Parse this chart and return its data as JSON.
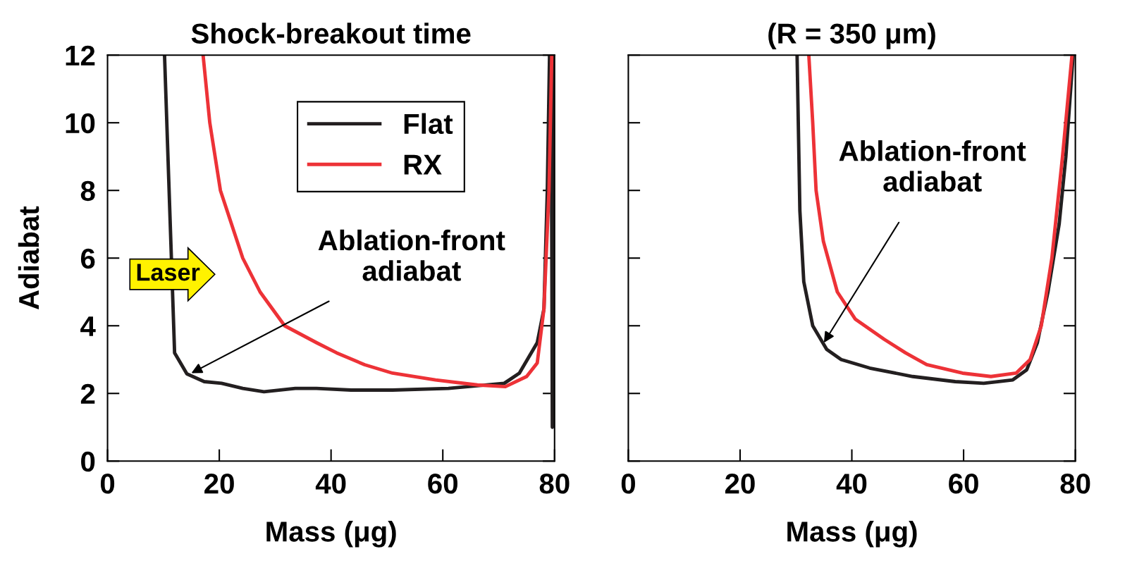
{
  "chart_data": [
    {
      "type": "line",
      "title": "Shock-breakout time",
      "xlabel": "Mass (μg)",
      "ylabel": "Adiabat",
      "xlim": [
        0,
        80
      ],
      "ylim": [
        0,
        12
      ],
      "xticks": [
        0,
        20,
        40,
        60,
        80
      ],
      "yticks": [
        0,
        2,
        4,
        6,
        8,
        10,
        12
      ],
      "grid": false,
      "legend": "top right",
      "line_style": "solid",
      "series": [
        {
          "name": "Flat",
          "color": "#231f20",
          "x": [
            10.2,
            12,
            14.2,
            17.3,
            20.4,
            24.2,
            28,
            33.6,
            37.4,
            43.6,
            51,
            61,
            71,
            73.7,
            76.9,
            78.1,
            78.7,
            79.1,
            79.4,
            79.6,
            79.8,
            80
          ],
          "values": [
            12,
            3.2,
            2.58,
            2.35,
            2.3,
            2.15,
            2.05,
            2.15,
            2.15,
            2.1,
            2.1,
            2.15,
            2.3,
            2.6,
            3.5,
            4.5,
            8,
            12,
            12,
            1.0,
            1.2,
            12
          ]
        },
        {
          "name": "RX",
          "color": "#ed3237",
          "x": [
            17.1,
            18.3,
            20.2,
            24.2,
            27.3,
            31.7,
            37.4,
            41,
            46,
            51,
            58.7,
            66.2,
            71.2,
            75,
            76.9,
            78.1,
            79,
            79.5
          ],
          "values": [
            12,
            10,
            8,
            6,
            5,
            4,
            3.5,
            3.2,
            2.85,
            2.6,
            2.4,
            2.25,
            2.2,
            2.5,
            2.9,
            4.5,
            8,
            12
          ]
        }
      ],
      "annotations": [
        {
          "text": "Ablation-front\nadiabat",
          "x": 15,
          "y": 2.6
        },
        "Laser"
      ]
    },
    {
      "type": "line",
      "title": "(R = 350 μm)",
      "xlabel": "Mass (μg)",
      "xlim": [
        0,
        80
      ],
      "ylim": [
        0,
        12
      ],
      "xticks": [
        0,
        20,
        40,
        60,
        80
      ],
      "yticks": [
        {
          "value": 0,
          "label": null
        },
        {
          "value": 2,
          "label": null
        },
        {
          "value": 4,
          "label": null
        },
        {
          "value": 6,
          "label": null
        },
        {
          "value": 8,
          "label": null
        },
        {
          "value": 10,
          "label": null
        },
        {
          "value": 12,
          "label": null
        }
      ],
      "tick_labels": "x",
      "grid": false,
      "line_style": "solid",
      "series": [
        {
          "color": "#231f20",
          "x": [
            30.2,
            30.7,
            31.4,
            33,
            35.5,
            38.1,
            43.2,
            50.9,
            58.5,
            63.6,
            68.8,
            71.3,
            73.2,
            75.1,
            77.1,
            78.3,
            79.6
          ],
          "values": [
            12,
            7.4,
            5.3,
            4,
            3.3,
            3.0,
            2.75,
            2.5,
            2.35,
            2.3,
            2.4,
            2.7,
            3.5,
            5,
            7,
            9,
            12
          ]
        },
        {
          "color": "#ed3237",
          "x": [
            32.3,
            33,
            33.6,
            34.9,
            37.4,
            40.6,
            45.8,
            49.6,
            53.4,
            59.8,
            64.9,
            69.4,
            71.9,
            73.9,
            75.8,
            77.7,
            79.4
          ],
          "values": [
            12,
            10,
            8,
            6.5,
            5,
            4.2,
            3.6,
            3.2,
            2.85,
            2.6,
            2.5,
            2.6,
            3.0,
            4,
            6,
            9,
            12
          ]
        }
      ],
      "annotations": [
        {
          "text": "Ablation-front\nadiabat",
          "x": 35,
          "y": 3.5
        }
      ]
    }
  ]
}
